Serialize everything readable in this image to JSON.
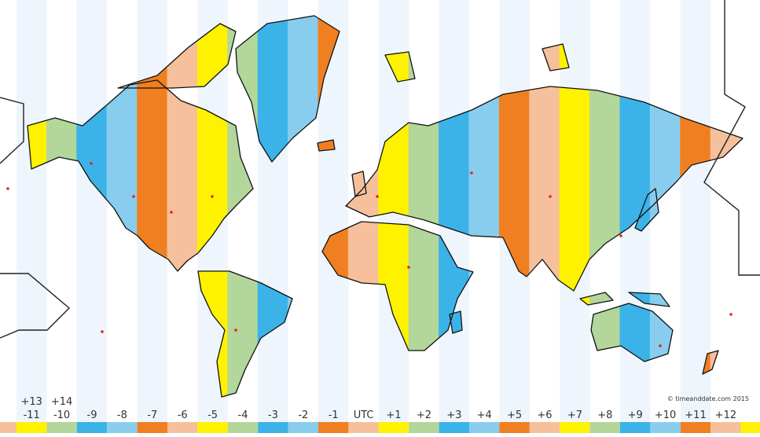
{
  "zones": [
    {
      "label": "-11",
      "extra": "+13",
      "color": "#fff200"
    },
    {
      "label": "-10",
      "extra": "+14",
      "color": "#b3d69a"
    },
    {
      "label": "-9",
      "color": "#3bb3e8"
    },
    {
      "label": "-8",
      "color": "#89cdee"
    },
    {
      "label": "-7",
      "color": "#f07f22"
    },
    {
      "label": "-6",
      "color": "#f5c09b"
    },
    {
      "label": "-5",
      "color": "#fff200"
    },
    {
      "label": "-4",
      "color": "#b3d69a"
    },
    {
      "label": "-3",
      "color": "#3bb3e8"
    },
    {
      "label": "-2",
      "color": "#89cdee"
    },
    {
      "label": "-1",
      "color": "#f07f22"
    },
    {
      "label": "UTC",
      "color": "#f5c09b"
    },
    {
      "label": "+1",
      "color": "#fff200"
    },
    {
      "label": "+2",
      "color": "#b3d69a"
    },
    {
      "label": "+3",
      "color": "#3bb3e8"
    },
    {
      "label": "+4",
      "color": "#89cdee"
    },
    {
      "label": "+5",
      "color": "#f07f22"
    },
    {
      "label": "+6",
      "color": "#f5c09b"
    },
    {
      "label": "+7",
      "color": "#fff200"
    },
    {
      "label": "+8",
      "color": "#b3d69a"
    },
    {
      "label": "+9",
      "color": "#3bb3e8"
    },
    {
      "label": "+10",
      "color": "#89cdee"
    },
    {
      "label": "+11",
      "color": "#f07f22"
    },
    {
      "label": "+12",
      "color": "#f5c09b"
    }
  ],
  "copyright": "© timeanddate.com 2015"
}
